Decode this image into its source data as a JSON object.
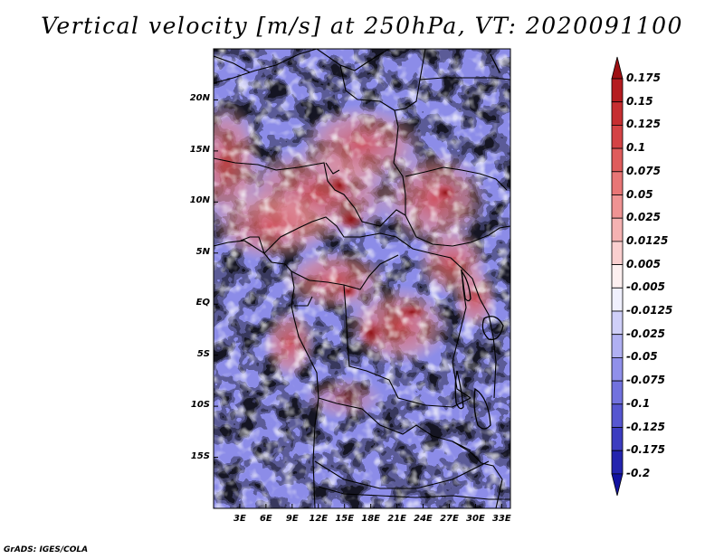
{
  "title": "Vertical velocity [m/s] at 250hPa, VT: 2020091100",
  "credit": "GrADS: IGES/COLA",
  "colors": {
    "positive": "#c0262b",
    "negative": "#2b2bc8",
    "border": "#000000"
  },
  "chart_data": {
    "type": "heatmap",
    "variable": "Vertical velocity",
    "units": "m/s",
    "level": "250hPa",
    "valid_time": "2020091100",
    "region": "Central Africa",
    "lon_range": [
      0,
      34
    ],
    "lat_range": [
      -20,
      25
    ],
    "y_ticks": [
      {
        "lat": 20,
        "label": "20N"
      },
      {
        "lat": 15,
        "label": "15N"
      },
      {
        "lat": 10,
        "label": "10N"
      },
      {
        "lat": 5,
        "label": "5N"
      },
      {
        "lat": 0,
        "label": "EQ"
      },
      {
        "lat": -5,
        "label": "5S"
      },
      {
        "lat": -10,
        "label": "10S"
      },
      {
        "lat": -15,
        "label": "15S"
      }
    ],
    "x_ticks": [
      {
        "lon": 3,
        "label": "3E"
      },
      {
        "lon": 6,
        "label": "6E"
      },
      {
        "lon": 9,
        "label": "9E"
      },
      {
        "lon": 12,
        "label": "12E"
      },
      {
        "lon": 15,
        "label": "15E"
      },
      {
        "lon": 18,
        "label": "18E"
      },
      {
        "lon": 21,
        "label": "21E"
      },
      {
        "lon": 24,
        "label": "24E"
      },
      {
        "lon": 27,
        "label": "27E"
      },
      {
        "lon": 30,
        "label": "30E"
      },
      {
        "lon": 33,
        "label": "33E"
      }
    ],
    "colorbar": {
      "labels": [
        "0.175",
        "0.15",
        "0.125",
        "0.1",
        "0.075",
        "0.05",
        "0.025",
        "0.0125",
        "0.005",
        "-0.005",
        "-0.0125",
        "-0.025",
        "-0.05",
        "-0.075",
        "-0.1",
        "-0.125",
        "-0.175",
        "-0.2"
      ],
      "colors": [
        "#9e0f12",
        "#b41c20",
        "#c62e31",
        "#d44345",
        "#df5c5c",
        "#e87676",
        "#ef9393",
        "#f5b2b2",
        "#facfcf",
        "#fdf0f0",
        "#f0f0fd",
        "#cfcff8",
        "#b0b0f2",
        "#9090ea",
        "#7272de",
        "#5656d0",
        "#3c3cc0",
        "#2424ae",
        "#1212a0"
      ]
    }
  }
}
